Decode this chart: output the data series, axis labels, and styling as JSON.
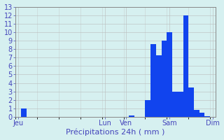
{
  "background_color": "#d6f0f0",
  "bar_color": "#1144ee",
  "grid_color": "#bbbbbb",
  "text_color": "#4444bb",
  "ylim": [
    0,
    13
  ],
  "yticks": [
    0,
    1,
    2,
    3,
    4,
    5,
    6,
    7,
    8,
    9,
    10,
    11,
    12,
    13
  ],
  "bar_values": [
    0,
    1,
    0,
    0,
    0,
    0,
    0,
    0,
    0,
    0,
    0,
    0,
    0,
    0,
    0,
    0,
    0,
    0,
    0,
    0,
    0,
    0.2,
    0,
    0,
    2,
    8.6,
    7.3,
    9,
    10,
    3,
    3,
    12,
    3.5,
    0.8,
    0.5,
    0.1,
    0
  ],
  "xtick_labels": [
    "Jeu",
    "Lun",
    "Ven",
    "Sam",
    "Dim"
  ],
  "xtick_positions": [
    0.5,
    16.5,
    20.5,
    28.5,
    36.5
  ],
  "n_bars": 37,
  "xlabel": "Précipitations 24h ( mm )",
  "xlabel_fontsize": 8,
  "tick_fontsize": 7,
  "spine_color": "#888888"
}
